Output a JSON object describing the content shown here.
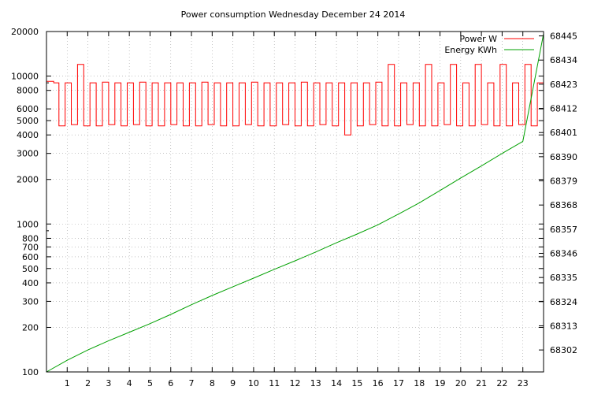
{
  "chart_data": {
    "type": "line",
    "title": "Power consumption Wednesday December 24 2014",
    "x_axis": {
      "range": [
        0,
        24
      ],
      "ticks": [
        1,
        2,
        3,
        4,
        5,
        6,
        7,
        8,
        9,
        10,
        11,
        12,
        13,
        14,
        15,
        16,
        17,
        18,
        19,
        20,
        21,
        22,
        23
      ],
      "tick_labels": [
        "1",
        "2",
        "3",
        "4",
        "5",
        "6",
        "7",
        "8",
        "9",
        "10",
        "11",
        "12",
        "13",
        "14",
        "15",
        "16",
        "17",
        "18",
        "19",
        "20",
        "21",
        "22",
        "23"
      ]
    },
    "y_axis_left": {
      "scale": "log",
      "range": [
        100,
        20000
      ],
      "ticks": [
        100,
        200,
        300,
        400,
        500,
        600,
        700,
        800,
        1000,
        2000,
        3000,
        4000,
        5000,
        6000,
        8000,
        10000,
        20000
      ],
      "tick_labels": [
        "100",
        "200",
        "300",
        "400",
        "500",
        "600",
        "700",
        "800",
        "1000",
        "2000",
        "3000",
        "4000",
        "5000",
        "6000",
        "8000",
        "10000",
        "20000"
      ]
    },
    "y_axis_right": {
      "scale": "linear",
      "range": [
        68292.0,
        68447.0
      ],
      "ticks": [
        68302,
        68313,
        68324,
        68335,
        68346,
        68357,
        68368,
        68379,
        68390,
        68401,
        68412,
        68423,
        68434,
        68445
      ],
      "tick_labels": [
        "68302",
        "68313",
        "68324",
        "68335",
        "68346",
        "68357",
        "68368",
        "68379",
        "68390",
        "68401",
        "68412",
        "68423",
        "68434",
        "68445"
      ]
    },
    "grid": true,
    "legend": {
      "position": "top-right",
      "entries": [
        {
          "name": "Power W",
          "color": "#ff0000"
        },
        {
          "name": "Energy KWh",
          "color": "#00a000"
        }
      ]
    },
    "series": [
      {
        "name": "Power W",
        "axis": "left",
        "color": "#ff0000",
        "x": [
          0.0,
          0.35,
          0.6,
          0.9,
          1.2,
          1.5,
          1.8,
          2.1,
          2.4,
          2.7,
          3.0,
          3.3,
          3.6,
          3.9,
          4.2,
          4.5,
          4.8,
          5.1,
          5.4,
          5.7,
          6.0,
          6.3,
          6.6,
          6.9,
          7.2,
          7.5,
          7.8,
          8.1,
          8.4,
          8.7,
          9.0,
          9.3,
          9.6,
          9.9,
          10.2,
          10.5,
          10.8,
          11.1,
          11.4,
          11.7,
          12.0,
          12.3,
          12.6,
          12.9,
          13.2,
          13.5,
          13.8,
          14.1,
          14.4,
          14.7,
          15.0,
          15.3,
          15.6,
          15.9,
          16.2,
          16.5,
          16.8,
          17.1,
          17.4,
          17.7,
          18.0,
          18.3,
          18.6,
          18.9,
          19.2,
          19.5,
          19.8,
          20.1,
          20.4,
          20.7,
          21.0,
          21.3,
          21.6,
          21.9,
          22.2,
          22.5,
          22.8,
          23.1,
          23.4,
          23.7,
          24.0
        ],
        "values": [
          9200,
          9000,
          4600,
          9000,
          4700,
          12000,
          4600,
          9000,
          4600,
          9100,
          4700,
          9000,
          4600,
          9000,
          4700,
          9100,
          4600,
          9000,
          4600,
          9000,
          4700,
          9000,
          4600,
          9000,
          4600,
          9100,
          4700,
          9000,
          4600,
          9000,
          4600,
          9000,
          4700,
          9100,
          4600,
          9000,
          4600,
          9000,
          4700,
          9000,
          4600,
          9100,
          4600,
          9000,
          4700,
          9000,
          4600,
          9000,
          4000,
          9000,
          4600,
          9000,
          4700,
          9100,
          4600,
          12000,
          4600,
          9000,
          4700,
          9000,
          4600,
          12000,
          4600,
          9000,
          4700,
          12000,
          4600,
          9000,
          4600,
          12000,
          4700,
          9000,
          4600,
          12000,
          4600,
          9000,
          4700,
          12000,
          4600,
          9000,
          4600
        ]
      },
      {
        "name": "Energy KWh",
        "axis": "right",
        "color": "#00a000",
        "x": [
          0,
          1,
          2,
          3,
          4,
          5,
          6,
          7,
          8,
          9,
          10,
          11,
          12,
          13,
          14,
          15,
          16,
          17,
          18,
          19,
          20,
          21,
          22,
          23,
          24
        ],
        "values": [
          68292.0,
          68297.3,
          68302.0,
          68306.2,
          68310.1,
          68314.0,
          68318.2,
          68322.6,
          68326.8,
          68330.8,
          68334.7,
          68338.7,
          68342.6,
          68346.6,
          68350.8,
          68354.8,
          68359.0,
          68363.9,
          68369.0,
          68374.6,
          68380.3,
          68385.8,
          68391.5,
          68397.0,
          68446.0
        ]
      }
    ]
  }
}
